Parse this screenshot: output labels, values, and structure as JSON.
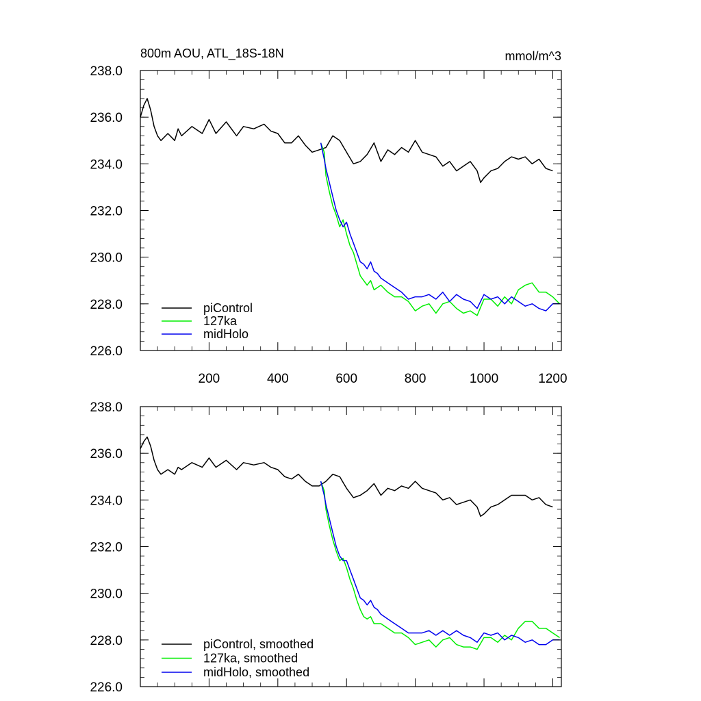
{
  "chart_data": [
    {
      "type": "line",
      "title": "800m AOU, ATL_18S-18N",
      "units": "mmol/m^3",
      "xlim": [
        0,
        1225
      ],
      "ylim": [
        226.0,
        238.0
      ],
      "xticks": [
        200,
        400,
        600,
        800,
        1000,
        1200
      ],
      "xtick_labels": [
        "200",
        "400",
        "600",
        "800",
        "1000",
        "1200"
      ],
      "yticks": [
        226.0,
        228.0,
        230.0,
        232.0,
        234.0,
        236.0,
        238.0
      ],
      "ytick_labels": [
        "226.0",
        "228.0",
        "230.0",
        "232.0",
        "234.0",
        "236.0",
        "238.0"
      ],
      "legend_position": "bottom-left",
      "series": [
        {
          "name": "piControl",
          "color": "#000000",
          "x": [
            0,
            10,
            20,
            30,
            40,
            50,
            60,
            80,
            100,
            110,
            120,
            150,
            180,
            200,
            220,
            250,
            280,
            300,
            330,
            360,
            380,
            400,
            420,
            440,
            460,
            480,
            500,
            520,
            540,
            560,
            580,
            600,
            620,
            640,
            660,
            680,
            700,
            720,
            740,
            760,
            780,
            800,
            820,
            840,
            860,
            880,
            900,
            920,
            940,
            960,
            980,
            990,
            1000,
            1020,
            1040,
            1060,
            1080,
            1100,
            1120,
            1140,
            1160,
            1180,
            1200
          ],
          "y": [
            236.0,
            236.5,
            236.8,
            236.3,
            235.6,
            235.2,
            235.0,
            235.3,
            235.0,
            235.5,
            235.2,
            235.6,
            235.3,
            235.9,
            235.3,
            235.8,
            235.2,
            235.6,
            235.5,
            235.7,
            235.4,
            235.3,
            234.9,
            234.9,
            235.2,
            234.8,
            234.5,
            234.6,
            234.7,
            235.2,
            235.0,
            234.5,
            234.0,
            234.1,
            234.4,
            234.9,
            234.1,
            234.6,
            234.4,
            234.7,
            234.5,
            235.0,
            234.5,
            234.4,
            234.3,
            233.9,
            234.1,
            233.7,
            233.9,
            234.1,
            233.7,
            233.2,
            233.4,
            233.7,
            233.8,
            234.1,
            234.3,
            234.2,
            234.3,
            234.0,
            234.2,
            233.8,
            233.7
          ]
        },
        {
          "name": "127ka",
          "color": "#00ee00",
          "x": [
            525,
            535,
            540,
            550,
            560,
            570,
            580,
            590,
            600,
            610,
            620,
            630,
            640,
            650,
            660,
            670,
            680,
            690,
            700,
            720,
            740,
            760,
            780,
            800,
            820,
            840,
            860,
            880,
            900,
            920,
            940,
            960,
            980,
            1000,
            1020,
            1040,
            1060,
            1080,
            1100,
            1120,
            1140,
            1160,
            1180,
            1200,
            1220
          ],
          "y": [
            234.9,
            234.5,
            233.5,
            232.8,
            232.2,
            231.8,
            231.3,
            231.6,
            231.0,
            230.5,
            230.2,
            229.7,
            229.2,
            229.0,
            228.8,
            229.0,
            228.6,
            228.7,
            228.8,
            228.5,
            228.3,
            228.3,
            228.1,
            227.7,
            227.9,
            228.0,
            227.6,
            228.0,
            228.1,
            227.8,
            227.6,
            227.7,
            227.5,
            228.2,
            228.2,
            227.9,
            228.3,
            228.0,
            228.6,
            228.8,
            228.9,
            228.5,
            228.5,
            228.3,
            228.0
          ]
        },
        {
          "name": "midHolo",
          "color": "#0000ee",
          "x": [
            525,
            535,
            540,
            550,
            560,
            570,
            580,
            590,
            600,
            610,
            620,
            630,
            640,
            650,
            660,
            670,
            680,
            690,
            700,
            720,
            740,
            760,
            780,
            800,
            820,
            840,
            860,
            880,
            900,
            920,
            940,
            960,
            980,
            1000,
            1020,
            1040,
            1060,
            1080,
            1100,
            1120,
            1140,
            1160,
            1180,
            1200,
            1220
          ],
          "y": [
            234.9,
            234.2,
            233.8,
            233.2,
            232.6,
            232.0,
            231.6,
            231.3,
            231.5,
            231.0,
            230.6,
            230.2,
            229.8,
            229.7,
            229.5,
            229.8,
            229.4,
            229.3,
            229.1,
            228.9,
            228.7,
            228.5,
            228.2,
            228.3,
            228.3,
            228.4,
            228.2,
            228.5,
            228.1,
            228.4,
            228.2,
            228.1,
            227.8,
            228.4,
            228.2,
            228.3,
            228.0,
            228.3,
            228.1,
            227.9,
            228.0,
            227.8,
            227.7,
            228.0,
            228.0
          ]
        }
      ]
    },
    {
      "type": "line",
      "xlim": [
        0,
        1225
      ],
      "ylim": [
        226.0,
        238.0
      ],
      "xticks": [
        200,
        400,
        600,
        800,
        1000,
        1200
      ],
      "yticks": [
        226.0,
        228.0,
        230.0,
        232.0,
        234.0,
        236.0,
        238.0
      ],
      "ytick_labels": [
        "226.0",
        "228.0",
        "230.0",
        "232.0",
        "234.0",
        "236.0",
        "238.0"
      ],
      "legend_position": "bottom-left",
      "series": [
        {
          "name": "piControl, smoothed",
          "color": "#000000",
          "x": [
            0,
            10,
            20,
            30,
            40,
            50,
            60,
            80,
            100,
            110,
            120,
            150,
            180,
            200,
            220,
            250,
            280,
            300,
            330,
            360,
            380,
            400,
            420,
            440,
            460,
            480,
            500,
            520,
            540,
            560,
            580,
            600,
            620,
            640,
            660,
            680,
            700,
            720,
            740,
            760,
            780,
            800,
            820,
            840,
            860,
            880,
            900,
            920,
            940,
            960,
            980,
            990,
            1000,
            1020,
            1040,
            1060,
            1080,
            1100,
            1120,
            1140,
            1160,
            1180,
            1200
          ],
          "y": [
            236.2,
            236.5,
            236.7,
            236.3,
            235.7,
            235.3,
            235.1,
            235.3,
            235.1,
            235.4,
            235.3,
            235.6,
            235.4,
            235.8,
            235.4,
            235.7,
            235.3,
            235.6,
            235.5,
            235.6,
            235.4,
            235.3,
            235.0,
            234.9,
            235.1,
            234.8,
            234.6,
            234.6,
            234.8,
            235.1,
            235.0,
            234.5,
            234.1,
            234.2,
            234.4,
            234.7,
            234.2,
            234.5,
            234.4,
            234.6,
            234.5,
            234.8,
            234.5,
            234.4,
            234.3,
            234.0,
            234.1,
            233.8,
            233.9,
            234.0,
            233.7,
            233.3,
            233.4,
            233.7,
            233.8,
            234.0,
            234.2,
            234.2,
            234.2,
            234.0,
            234.1,
            233.8,
            233.7
          ]
        },
        {
          "name": "127ka, smoothed",
          "color": "#00ee00",
          "x": [
            525,
            535,
            540,
            550,
            560,
            570,
            580,
            590,
            600,
            610,
            620,
            630,
            640,
            650,
            660,
            670,
            680,
            690,
            700,
            720,
            740,
            760,
            780,
            800,
            820,
            840,
            860,
            880,
            900,
            920,
            940,
            960,
            980,
            1000,
            1020,
            1040,
            1060,
            1080,
            1100,
            1120,
            1140,
            1160,
            1180,
            1200,
            1220
          ],
          "y": [
            234.8,
            234.4,
            233.6,
            232.9,
            232.3,
            231.8,
            231.4,
            231.5,
            231.1,
            230.6,
            230.2,
            229.7,
            229.3,
            229.0,
            228.9,
            229.0,
            228.7,
            228.7,
            228.7,
            228.5,
            228.3,
            228.3,
            228.1,
            227.8,
            227.9,
            228.0,
            227.7,
            228.0,
            228.1,
            227.8,
            227.7,
            227.7,
            227.6,
            228.1,
            228.1,
            227.9,
            228.2,
            228.0,
            228.5,
            228.8,
            228.8,
            228.5,
            228.5,
            228.3,
            228.1
          ]
        },
        {
          "name": "midHolo, smoothed",
          "color": "#0000ee",
          "x": [
            525,
            535,
            540,
            550,
            560,
            570,
            580,
            590,
            600,
            610,
            620,
            630,
            640,
            650,
            660,
            670,
            680,
            690,
            700,
            720,
            740,
            760,
            780,
            800,
            820,
            840,
            860,
            880,
            900,
            920,
            940,
            960,
            980,
            1000,
            1020,
            1040,
            1060,
            1080,
            1100,
            1120,
            1140,
            1160,
            1180,
            1200,
            1220
          ],
          "y": [
            234.8,
            234.2,
            233.8,
            233.2,
            232.6,
            232.0,
            231.6,
            231.4,
            231.4,
            231.0,
            230.6,
            230.2,
            229.8,
            229.7,
            229.5,
            229.7,
            229.4,
            229.3,
            229.1,
            228.9,
            228.7,
            228.5,
            228.3,
            228.3,
            228.3,
            228.4,
            228.2,
            228.4,
            228.2,
            228.4,
            228.2,
            228.1,
            227.9,
            228.3,
            228.2,
            228.3,
            228.0,
            228.2,
            228.1,
            227.9,
            228.0,
            227.8,
            227.8,
            228.0,
            228.0
          ]
        }
      ]
    }
  ]
}
